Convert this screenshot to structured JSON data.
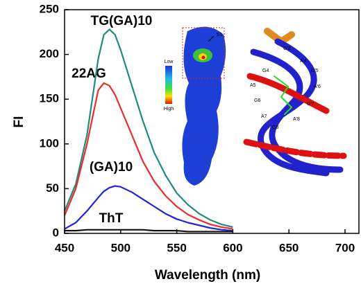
{
  "chart_data": {
    "type": "line",
    "x_label": "Wavelength (nm)",
    "y_label": "FI",
    "x": [
      450,
      460,
      470,
      480,
      485,
      490,
      495,
      500,
      510,
      520,
      530,
      540,
      550,
      560,
      570,
      580,
      590,
      600
    ],
    "series": [
      {
        "name": "TG(GA)10",
        "color": "#1f8b7c",
        "values": [
          25,
          55,
          110,
          195,
          222,
          228,
          222,
          205,
          165,
          125,
          90,
          65,
          45,
          32,
          22,
          15,
          10,
          7
        ]
      },
      {
        "name": "22AG",
        "color": "#ee2a2a",
        "values": [
          20,
          50,
          100,
          160,
          168,
          165,
          155,
          140,
          110,
          80,
          58,
          42,
          30,
          21,
          15,
          10,
          7,
          5
        ]
      },
      {
        "name": "(GA)10",
        "color": "#2222dd",
        "values": [
          5,
          12,
          25,
          40,
          47,
          51,
          53,
          52,
          46,
          38,
          30,
          22,
          16,
          12,
          9,
          6,
          4,
          3
        ]
      },
      {
        "name": "ThT",
        "color": "#111111",
        "values": [
          3,
          3,
          4,
          4,
          4,
          4,
          4,
          4,
          4,
          4,
          3,
          3,
          3,
          2,
          2,
          2,
          2,
          2
        ]
      }
    ],
    "xlim": [
      450,
      700
    ],
    "xticks": [
      450,
      500,
      550,
      600,
      650,
      700
    ],
    "ylim": [
      0,
      250
    ],
    "yticks": [
      0,
      50,
      100,
      150,
      200,
      250
    ],
    "grid": false
  },
  "insets": {
    "protein": {
      "site": "S1",
      "scale_low": "Low",
      "scale_high": "High"
    },
    "dna": {
      "labels": [
        "G'3",
        "A'4",
        "G'5",
        "A'6",
        "G'7",
        "A'8",
        "G4",
        "A5",
        "G6",
        "A7",
        "G8"
      ]
    }
  }
}
